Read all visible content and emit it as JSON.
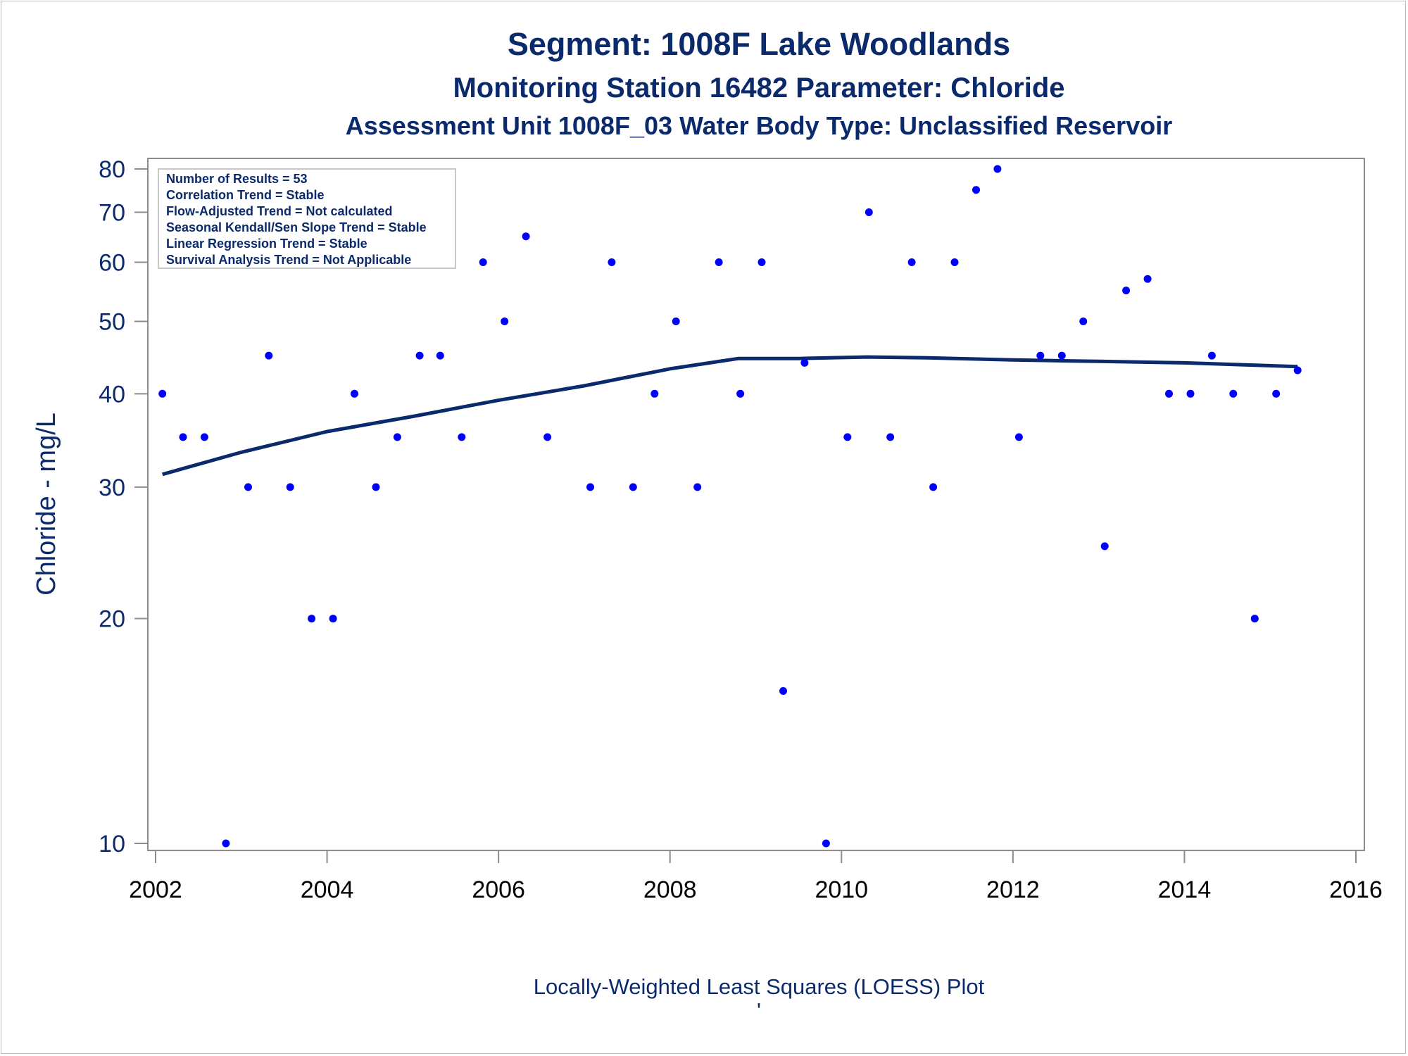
{
  "chart_data": {
    "type": "scatter",
    "title": "Segment: 1008F  Lake Woodlands",
    "subtitle": "Monitoring Station 16482 Parameter: Chloride",
    "subtitle2": "Assessment Unit 1008F_03   Water Body Type: Unclassified Reservoir",
    "xlabel": "",
    "ylabel": "Chloride - mg/L",
    "footnote": "Locally-Weighted Least Squares (LOESS) Plot",
    "footnote_mark": "'",
    "xlim": [
      2002,
      2016
    ],
    "ylim": [
      10,
      80
    ],
    "y_scale": "log",
    "x_ticks": [
      "2002",
      "2004",
      "2006",
      "2008",
      "2010",
      "2012",
      "2014",
      "2016"
    ],
    "y_ticks": [
      "10",
      "20",
      "30",
      "40",
      "50",
      "60",
      "70",
      "80"
    ],
    "grid": false,
    "annotation_box": {
      "position": "top-left",
      "lines": [
        "Number of Results = 53",
        "Correlation Trend = Stable",
        "Flow-Adjusted Trend = Not calculated",
        "Seasonal Kendall/Sen Slope Trend = Stable",
        "Linear Regression Trend = Stable",
        "Survival Analysis Trend = Not Applicable"
      ]
    },
    "series": [
      {
        "type": "scatter",
        "color": "#0000ff",
        "points": [
          [
            2002.08,
            40
          ],
          [
            2002.32,
            35
          ],
          [
            2002.57,
            35
          ],
          [
            2002.82,
            10
          ],
          [
            2003.08,
            30
          ],
          [
            2003.32,
            45
          ],
          [
            2003.57,
            30
          ],
          [
            2003.82,
            20
          ],
          [
            2004.07,
            20
          ],
          [
            2004.32,
            40
          ],
          [
            2004.57,
            30
          ],
          [
            2004.82,
            35
          ],
          [
            2005.08,
            45
          ],
          [
            2005.32,
            45
          ],
          [
            2005.57,
            35
          ],
          [
            2005.82,
            60
          ],
          [
            2006.07,
            50
          ],
          [
            2006.32,
            65
          ],
          [
            2006.57,
            35
          ],
          [
            2007.07,
            30
          ],
          [
            2007.32,
            60
          ],
          [
            2007.57,
            30
          ],
          [
            2007.82,
            40
          ],
          [
            2008.07,
            50
          ],
          [
            2008.32,
            30
          ],
          [
            2008.57,
            60
          ],
          [
            2008.82,
            40
          ],
          [
            2009.07,
            60
          ],
          [
            2009.32,
            16
          ],
          [
            2009.57,
            44
          ],
          [
            2009.82,
            10
          ],
          [
            2010.07,
            35
          ],
          [
            2010.32,
            70
          ],
          [
            2010.57,
            35
          ],
          [
            2010.82,
            60
          ],
          [
            2011.07,
            30
          ],
          [
            2011.32,
            60
          ],
          [
            2011.57,
            75
          ],
          [
            2011.82,
            80
          ],
          [
            2012.07,
            35
          ],
          [
            2012.32,
            45
          ],
          [
            2012.57,
            45
          ],
          [
            2012.82,
            50
          ],
          [
            2013.07,
            25
          ],
          [
            2013.32,
            55
          ],
          [
            2013.57,
            57
          ],
          [
            2013.82,
            40
          ],
          [
            2014.07,
            40
          ],
          [
            2014.32,
            45
          ],
          [
            2014.57,
            40
          ],
          [
            2014.82,
            20
          ],
          [
            2015.07,
            40
          ],
          [
            2015.32,
            43
          ]
        ]
      },
      {
        "type": "line",
        "color": "#0b2a6b",
        "points": [
          [
            2002.08,
            31.2
          ],
          [
            2003.0,
            33.4
          ],
          [
            2004.0,
            35.6
          ],
          [
            2005.0,
            37.3
          ],
          [
            2006.0,
            39.2
          ],
          [
            2007.0,
            41.0
          ],
          [
            2008.0,
            43.2
          ],
          [
            2008.8,
            44.6
          ],
          [
            2009.5,
            44.6
          ],
          [
            2010.3,
            44.8
          ],
          [
            2011.0,
            44.7
          ],
          [
            2012.0,
            44.4
          ],
          [
            2013.0,
            44.2
          ],
          [
            2014.0,
            44.0
          ],
          [
            2014.8,
            43.7
          ],
          [
            2015.32,
            43.5
          ]
        ]
      }
    ]
  }
}
